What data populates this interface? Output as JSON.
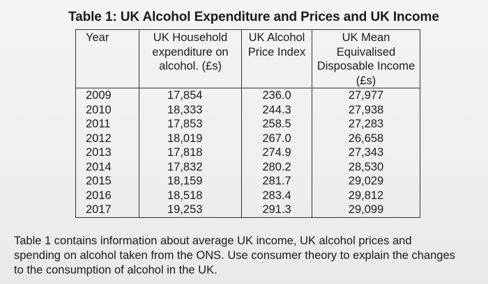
{
  "title": "Table 1: UK Alcohol Expenditure and Prices and UK Income",
  "table": {
    "headers": {
      "year": "Year",
      "expenditure": [
        "UK Household",
        "expenditure on",
        "alcohol. (£s)"
      ],
      "price_index": [
        "UK Alcohol",
        "Price Index"
      ],
      "income": [
        "UK Mean",
        "Equivalised",
        "Disposable Income",
        "(£s)"
      ]
    },
    "years": [
      "2009",
      "2010",
      "2011",
      "2012",
      "2013",
      "2014",
      "2015",
      "2016",
      "2017"
    ],
    "expenditure": [
      "17,854",
      "18,333",
      "17,853",
      "18,019",
      "17,818",
      "17,832",
      "18,159",
      "18,518",
      "19,253"
    ],
    "price_index": [
      "236.0",
      "244.3",
      "258.5",
      "267.0",
      "274.9",
      "280.2",
      "281.7",
      "283.4",
      "291.3"
    ],
    "income": [
      "27,977",
      "27,938",
      "27,283",
      "26,658",
      "27,343",
      "28,530",
      "29,029",
      "29,812",
      "29,099"
    ]
  },
  "caption": "Table 1 contains information about average UK income, UK alcohol prices and spending on alcohol taken from the ONS. Use consumer theory to explain the changes to the consumption of alcohol in the UK."
}
